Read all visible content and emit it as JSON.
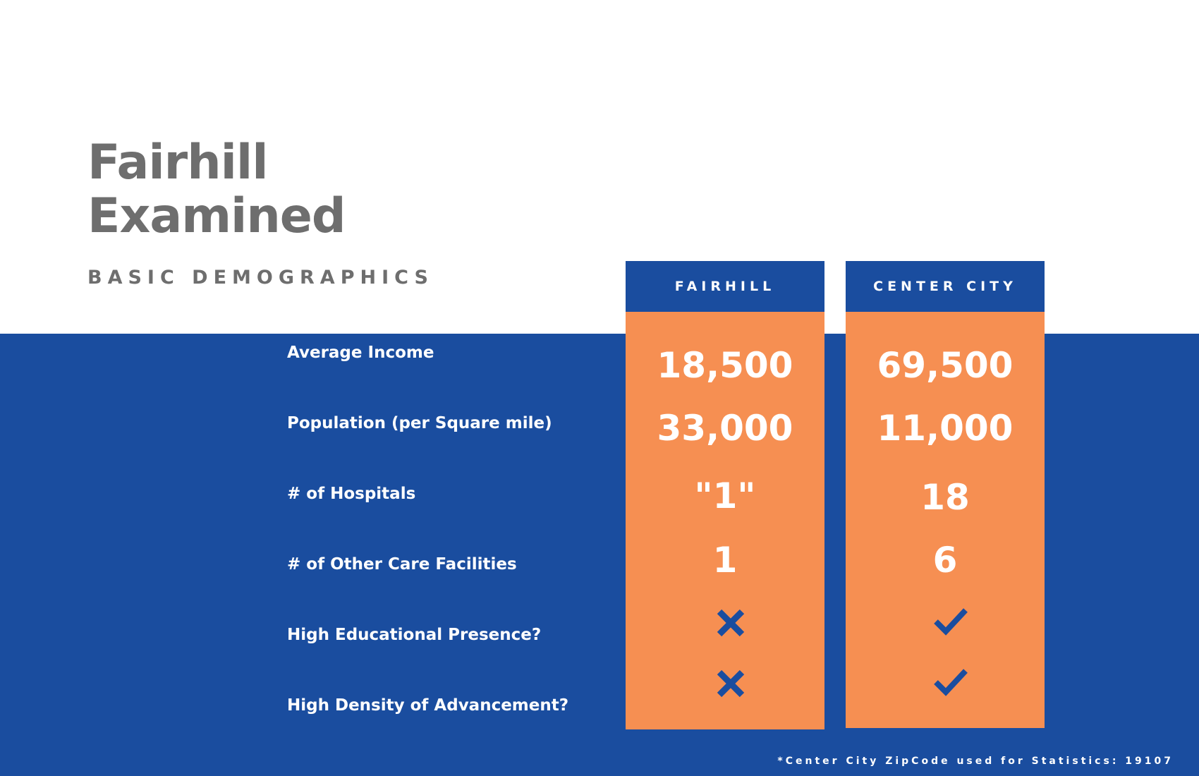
{
  "title": {
    "line1": "Fairhill",
    "line2": "Examined"
  },
  "subtitle": "BASIC DEMOGRAPHICS",
  "rows": [
    {
      "label": "Average Income"
    },
    {
      "label": "Population (per Square mile)"
    },
    {
      "label": "# of  Hospitals"
    },
    {
      "label": "# of Other Care Facilities"
    },
    {
      "label": "High Educational Presence?"
    },
    {
      "label": "High Density of Advancement?"
    }
  ],
  "columns": [
    {
      "header": "FAIRHILL",
      "values": [
        "18,500",
        "33,000",
        "\"1\"",
        "1"
      ],
      "icons": [
        "x-icon",
        "x-icon"
      ]
    },
    {
      "header": "CENTER CITY",
      "values": [
        "69,500",
        "11,000",
        "18",
        "6"
      ],
      "icons": [
        "check-icon",
        "check-icon"
      ]
    }
  ],
  "footnote": "*Center City ZipCode used for Statistics: 19107",
  "colors": {
    "blue": "#1a4d9f",
    "orange": "#f68f52",
    "gray_text": "#6e6e6e",
    "white": "#ffffff"
  }
}
